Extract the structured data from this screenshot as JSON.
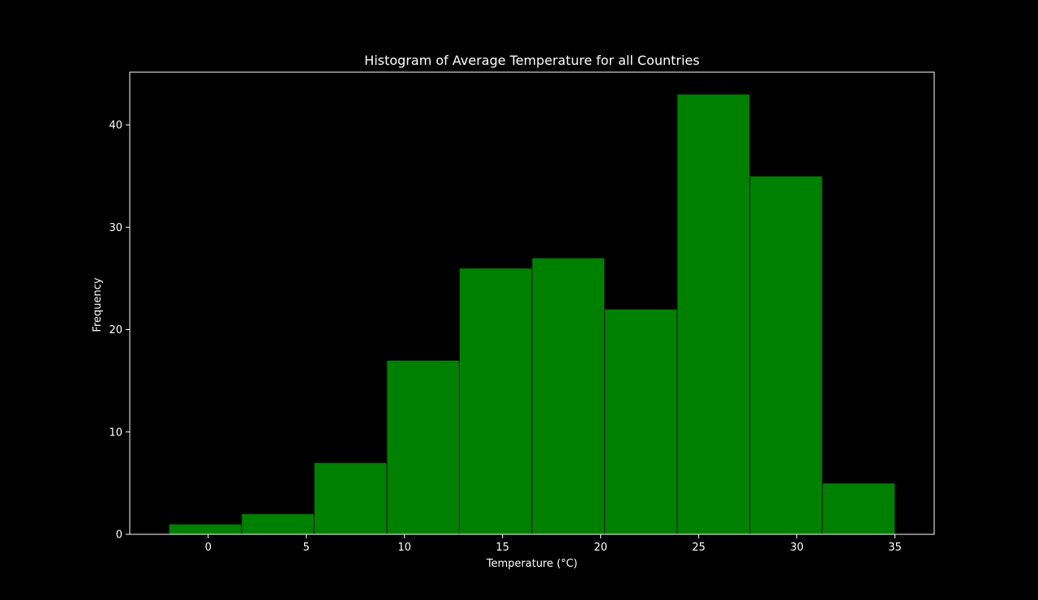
{
  "chart_data": {
    "type": "bar",
    "title": "Histogram of Average Temperature for all Countries",
    "xlabel": "Temperature (°C)",
    "ylabel": "Frequency",
    "bin_edges": [
      -2.0,
      1.7,
      5.4,
      9.1,
      12.8,
      16.5,
      20.2,
      23.9,
      27.6,
      31.3,
      35.0
    ],
    "values": [
      1,
      2,
      7,
      17,
      26,
      27,
      22,
      43,
      35,
      5
    ],
    "xlim": [
      -4.0,
      37.0
    ],
    "ylim": [
      0,
      45.15
    ],
    "xticks": [
      0,
      5,
      10,
      15,
      20,
      25,
      30,
      35
    ],
    "yticks": [
      0,
      10,
      20,
      30,
      40
    ],
    "grid": false,
    "colors": {
      "background": "#000000",
      "bar": "#008000",
      "bar_edge": "#001a00",
      "text": "#ffffff"
    }
  }
}
